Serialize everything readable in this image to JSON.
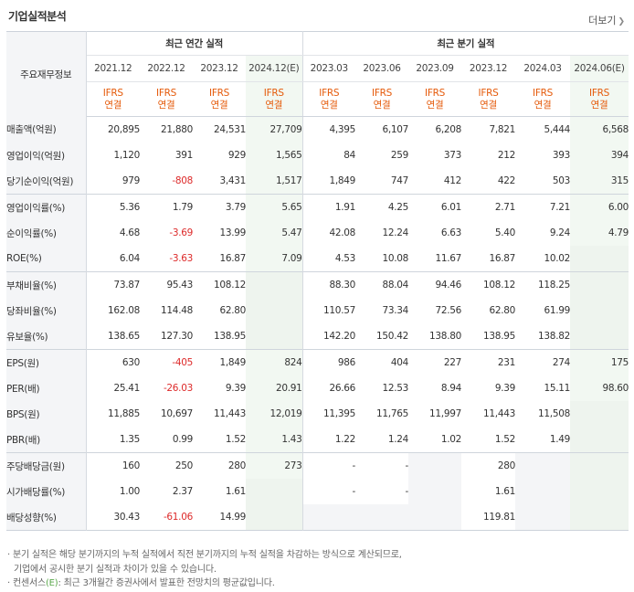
{
  "title": "기업실적분석",
  "more_label": "더보기",
  "row_header": "주요재무정보",
  "groups": {
    "annual": "최근 연간 실적",
    "quarterly": "최근 분기 실적"
  },
  "periods": [
    "2021.12",
    "2022.12",
    "2023.12",
    "2024.12(E)",
    "2023.03",
    "2023.06",
    "2023.09",
    "2023.12",
    "2024.03",
    "2024.06(E)"
  ],
  "ifrs": {
    "line1": "IFRS",
    "line2": "연결"
  },
  "rows": [
    {
      "label": "매출액(억원)",
      "values": [
        "20,895",
        "21,880",
        "24,531",
        "27,709",
        "4,395",
        "6,107",
        "6,208",
        "7,821",
        "5,444",
        "6,568"
      ]
    },
    {
      "label": "영업이익(억원)",
      "values": [
        "1,120",
        "391",
        "929",
        "1,565",
        "84",
        "259",
        "373",
        "212",
        "393",
        "394"
      ]
    },
    {
      "label": "당기순이익(억원)",
      "values": [
        "979",
        "-808",
        "3,431",
        "1,517",
        "1,849",
        "747",
        "412",
        "422",
        "503",
        "315"
      ]
    },
    {
      "label": "영업이익률(%)",
      "values": [
        "5.36",
        "1.79",
        "3.79",
        "5.65",
        "1.91",
        "4.25",
        "6.01",
        "2.71",
        "7.21",
        "6.00"
      ]
    },
    {
      "label": "순이익률(%)",
      "values": [
        "4.68",
        "-3.69",
        "13.99",
        "5.47",
        "42.08",
        "12.24",
        "6.63",
        "5.40",
        "9.24",
        "4.79"
      ]
    },
    {
      "label": "ROE(%)",
      "values": [
        "6.04",
        "-3.63",
        "16.87",
        "7.09",
        "4.53",
        "10.08",
        "11.67",
        "16.87",
        "10.02",
        ""
      ]
    },
    {
      "label": "부채비율(%)",
      "values": [
        "73.87",
        "95.43",
        "108.12",
        "",
        "88.30",
        "88.04",
        "94.46",
        "108.12",
        "118.25",
        ""
      ]
    },
    {
      "label": "당좌비율(%)",
      "values": [
        "162.08",
        "114.48",
        "62.80",
        "",
        "110.57",
        "73.34",
        "72.56",
        "62.80",
        "61.99",
        ""
      ]
    },
    {
      "label": "유보율(%)",
      "values": [
        "138.65",
        "127.30",
        "138.95",
        "",
        "142.20",
        "150.42",
        "138.80",
        "138.95",
        "138.82",
        ""
      ]
    },
    {
      "label": "EPS(원)",
      "values": [
        "630",
        "-405",
        "1,849",
        "824",
        "986",
        "404",
        "227",
        "231",
        "274",
        "175"
      ]
    },
    {
      "label": "PER(배)",
      "values": [
        "25.41",
        "-26.03",
        "9.39",
        "20.91",
        "26.66",
        "12.53",
        "8.94",
        "9.39",
        "15.11",
        "98.60"
      ]
    },
    {
      "label": "BPS(원)",
      "values": [
        "11,885",
        "10,697",
        "11,443",
        "12,019",
        "11,395",
        "11,765",
        "11,997",
        "11,443",
        "11,508",
        ""
      ]
    },
    {
      "label": "PBR(배)",
      "values": [
        "1.35",
        "0.99",
        "1.52",
        "1.43",
        "1.22",
        "1.24",
        "1.02",
        "1.52",
        "1.49",
        ""
      ]
    },
    {
      "label": "주당배당금(원)",
      "values": [
        "160",
        "250",
        "280",
        "273",
        "-",
        "-",
        "",
        "280",
        "",
        ""
      ]
    },
    {
      "label": "시가배당률(%)",
      "values": [
        "1.00",
        "2.37",
        "1.61",
        "",
        "-",
        "-",
        "",
        "1.61",
        "",
        ""
      ]
    },
    {
      "label": "배당성향(%)",
      "values": [
        "30.43",
        "-61.06",
        "14.99",
        "",
        "",
        "",
        "",
        "119.81",
        "",
        ""
      ]
    }
  ],
  "notes": {
    "line1": "· 분기 실적은 해당 분기까지의 누적 실적에서 직전 분기까지의 누적 실적을 차감하는 방식으로 계산되므로,",
    "line2": "기업에서 공시한 분기 실적과 차이가 있을 수 있습니다.",
    "line3_prefix": "· 컨센서스",
    "line3_est": "(E)",
    "line3_suffix": ": 최근 3개월간 증권사에서 발표한 전망치의 평균값입니다."
  },
  "colors": {
    "negative": "#dd2a2a",
    "ifrs": "#e55a0a",
    "estimate_bg": "#f2f8f2",
    "estimate_mark": "#5aa84b"
  }
}
